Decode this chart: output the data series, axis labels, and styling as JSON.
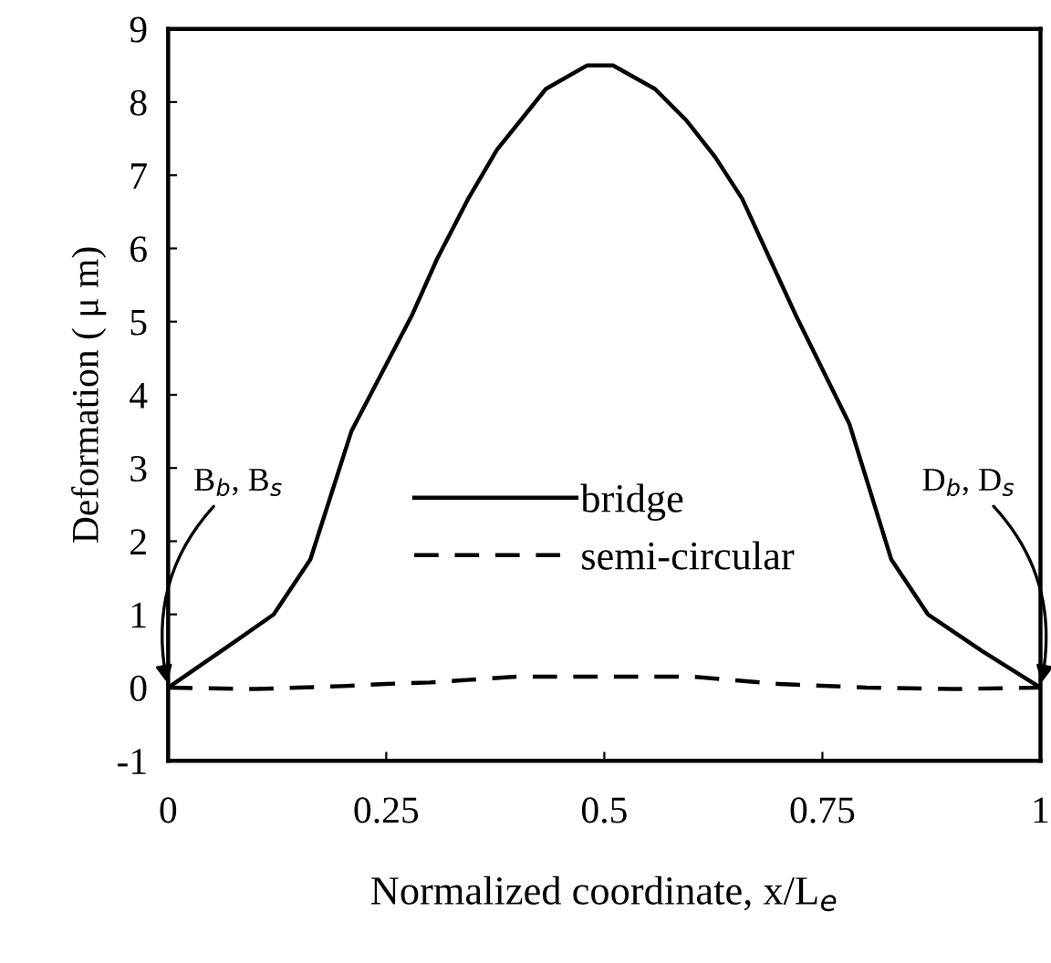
{
  "chart_data": {
    "type": "line",
    "xlabel": "Normalized coordinate, x/L$_{e}$",
    "ylabel": "Deformation ( μ m)",
    "xlim": [
      0,
      1
    ],
    "ylim": [
      -1,
      9
    ],
    "xticks": [
      0,
      0.25,
      0.5,
      0.75,
      1
    ],
    "yticks": [
      -1,
      0,
      1,
      2,
      3,
      4,
      5,
      6,
      7,
      8,
      9
    ],
    "grid": false,
    "legend": "bottom",
    "marker": "none",
    "series": [
      {
        "name": "bridge",
        "color": "#000000",
        "line_style": "solid",
        "x": [
          0,
          0.073,
          0.121,
          0.163,
          0.21,
          0.28,
          0.308,
          0.344,
          0.377,
          0.433,
          0.48,
          0.51,
          0.558,
          0.594,
          0.627,
          0.658,
          0.719,
          0.781,
          0.829,
          0.871,
          0.933,
          1.0
        ],
        "values": [
          0,
          0.6,
          1.0,
          1.75,
          3.5,
          5.1,
          5.85,
          6.68,
          7.35,
          8.18,
          8.5,
          8.5,
          8.18,
          7.75,
          7.25,
          6.68,
          5.1,
          3.6,
          1.75,
          1.0,
          0.5,
          0
        ]
      },
      {
        "name": "semi-circular",
        "color": "#000000",
        "line_style": "dashed",
        "x": [
          0,
          0.1,
          0.2,
          0.25,
          0.3,
          0.4,
          0.5,
          0.6,
          0.7,
          0.8,
          0.9,
          1.0
        ],
        "values": [
          0,
          -0.02,
          0.02,
          0.05,
          0.07,
          0.15,
          0.15,
          0.15,
          0.05,
          0.0,
          -0.02,
          0
        ]
      }
    ],
    "annotations": [
      {
        "text": "B$_{b}$, B$_{s}$",
        "x": 0,
        "y": 0
      },
      {
        "text": "D$_{b}$, D$_{s}$",
        "x": 1,
        "y": 0
      }
    ]
  }
}
